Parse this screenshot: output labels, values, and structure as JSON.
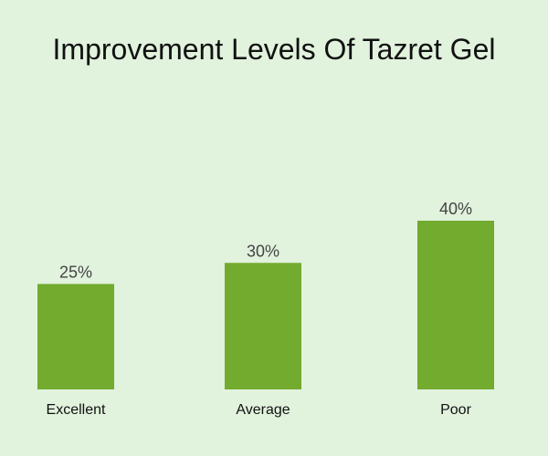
{
  "chart_data": {
    "type": "bar",
    "title": "Improvement Levels Of Tazret Gel",
    "categories": [
      "Excellent",
      "Average",
      "Poor"
    ],
    "values": [
      25,
      30,
      40
    ],
    "value_labels": [
      "25%",
      "30%",
      "40%"
    ],
    "xlabel": "",
    "ylabel": "",
    "ylim": [
      0,
      40
    ],
    "grid": false,
    "legend": "none",
    "bar_color": "#72ab2e",
    "background": "#e1f2dd"
  }
}
